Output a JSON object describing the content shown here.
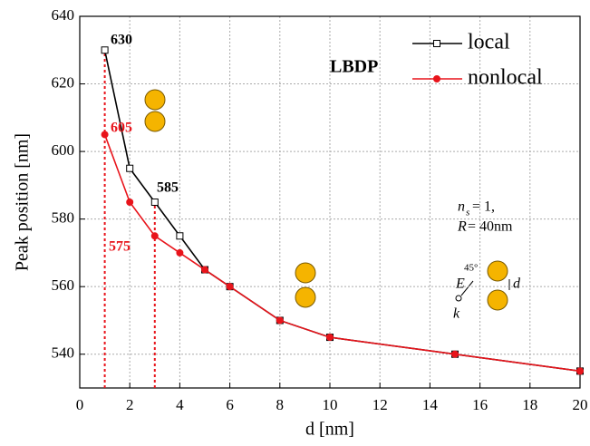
{
  "chart_data": {
    "type": "line",
    "x_label": "d [nm]",
    "y_label": "Peak position [nm]",
    "x": [
      1,
      2,
      3,
      4,
      5,
      6,
      8,
      10,
      15,
      20
    ],
    "series": [
      {
        "name": "local",
        "color": "#000000",
        "marker": "open-square",
        "values": [
          630,
          595,
          585,
          575,
          565,
          560,
          550,
          545,
          540,
          535
        ]
      },
      {
        "name": "nonlocal",
        "color": "#e8141b",
        "marker": "filled-circle",
        "values": [
          605,
          585,
          575,
          570,
          565,
          560,
          550,
          545,
          540,
          535
        ]
      }
    ],
    "xlim": [
      0,
      20
    ],
    "xticks": [
      0,
      2,
      4,
      6,
      8,
      10,
      12,
      14,
      16,
      18,
      20
    ],
    "ylim": [
      530,
      640
    ],
    "yticks": [
      540,
      560,
      580,
      600,
      620,
      640
    ],
    "grid": true,
    "legend": "top-right",
    "annotations": [
      "630",
      "605",
      "585",
      "575",
      "LBDP",
      "n",
      "s",
      "= 1,",
      "R",
      "= 40nm",
      "E",
      "45°",
      "k",
      "d"
    ]
  }
}
